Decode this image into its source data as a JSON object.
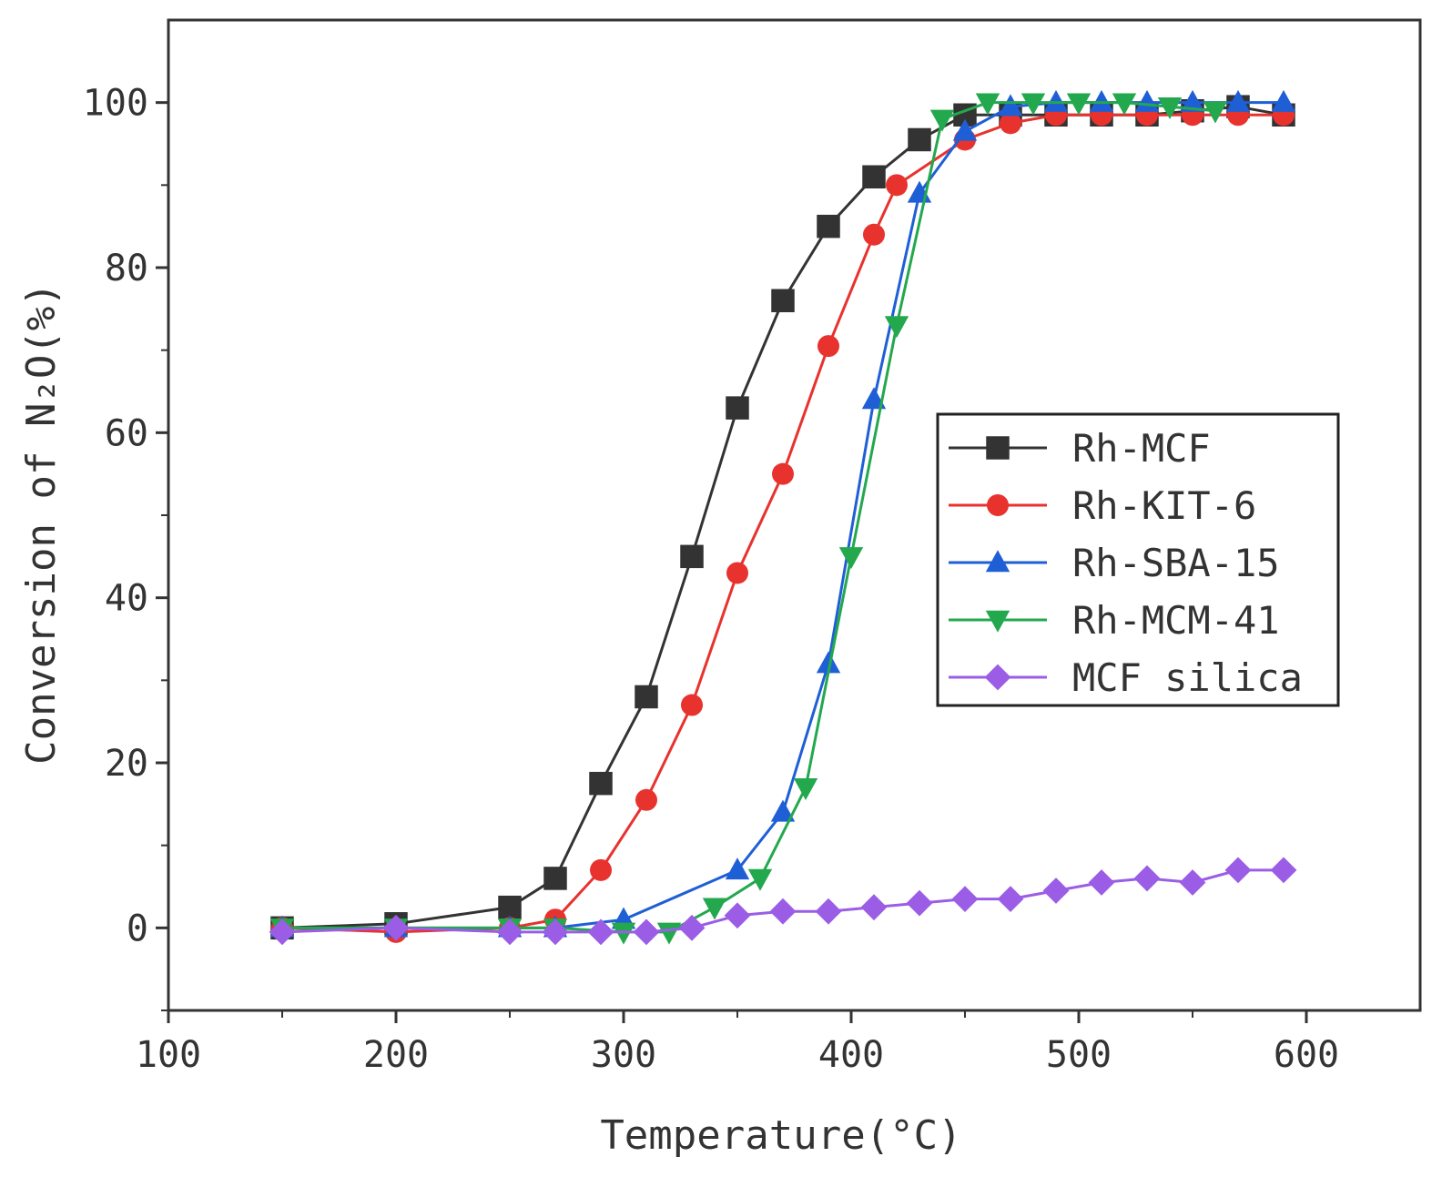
{
  "chart_data": {
    "type": "line",
    "xlabel": "Temperature(°C)",
    "ylabel": "Conversion of N₂O(%)",
    "xlim": [
      100,
      650
    ],
    "ylim": [
      -10,
      110
    ],
    "xticks": [
      100,
      200,
      300,
      400,
      500,
      600
    ],
    "yticks": [
      0,
      20,
      40,
      60,
      80,
      100
    ],
    "grid": false,
    "legend_position": "right",
    "series": [
      {
        "name": "Rh-MCF",
        "color": "#333333",
        "marker": "square",
        "x": [
          150,
          200,
          250,
          270,
          290,
          310,
          330,
          350,
          370,
          390,
          410,
          430,
          450,
          470,
          490,
          510,
          530,
          550,
          570,
          590
        ],
        "y": [
          0,
          0.5,
          2.5,
          6,
          17.5,
          28,
          45,
          63,
          76,
          85,
          91,
          95.5,
          98.5,
          98.5,
          98.5,
          98.5,
          98.5,
          99,
          99.5,
          98.5
        ]
      },
      {
        "name": "Rh-KIT-6",
        "color": "#e8322e",
        "marker": "circle",
        "x": [
          150,
          200,
          250,
          270,
          290,
          310,
          330,
          350,
          370,
          390,
          410,
          420,
          450,
          470,
          490,
          510,
          530,
          550,
          570,
          590
        ],
        "y": [
          0,
          -0.5,
          0,
          1,
          7,
          15.5,
          27,
          43,
          55,
          70.5,
          84,
          90,
          95.5,
          97.5,
          98.5,
          98.5,
          98.5,
          98.5,
          98.5,
          98.5
        ]
      },
      {
        "name": "Rh-SBA-15",
        "color": "#1f5fd6",
        "marker": "triangle-up",
        "x": [
          150,
          200,
          250,
          270,
          300,
          350,
          370,
          390,
          410,
          430,
          450,
          470,
          490,
          510,
          530,
          550,
          570,
          590
        ],
        "y": [
          0,
          0,
          0,
          0,
          1,
          7,
          14,
          32,
          64,
          89,
          96.5,
          99.5,
          100,
          100,
          100,
          100,
          100,
          100
        ]
      },
      {
        "name": "Rh-MCM-41",
        "color": "#23a84e",
        "marker": "triangle-down",
        "x": [
          150,
          200,
          250,
          270,
          300,
          320,
          340,
          360,
          380,
          400,
          420,
          440,
          460,
          480,
          500,
          520,
          540,
          560
        ],
        "y": [
          0,
          0,
          0,
          0,
          -0.5,
          -0.5,
          2.5,
          6,
          17,
          45,
          73,
          98,
          100,
          100,
          100,
          100,
          99.5,
          99
        ]
      },
      {
        "name": "MCF silica",
        "color": "#9b5de5",
        "marker": "diamond",
        "x": [
          150,
          200,
          250,
          270,
          290,
          310,
          330,
          350,
          370,
          390,
          410,
          430,
          450,
          470,
          490,
          510,
          530,
          550,
          570,
          590
        ],
        "y": [
          -0.5,
          0,
          -0.5,
          -0.5,
          -0.5,
          -0.5,
          0,
          1.5,
          2,
          2,
          2.5,
          3,
          3.5,
          3.5,
          4.5,
          5.5,
          6,
          5.5,
          7,
          7
        ]
      }
    ]
  }
}
